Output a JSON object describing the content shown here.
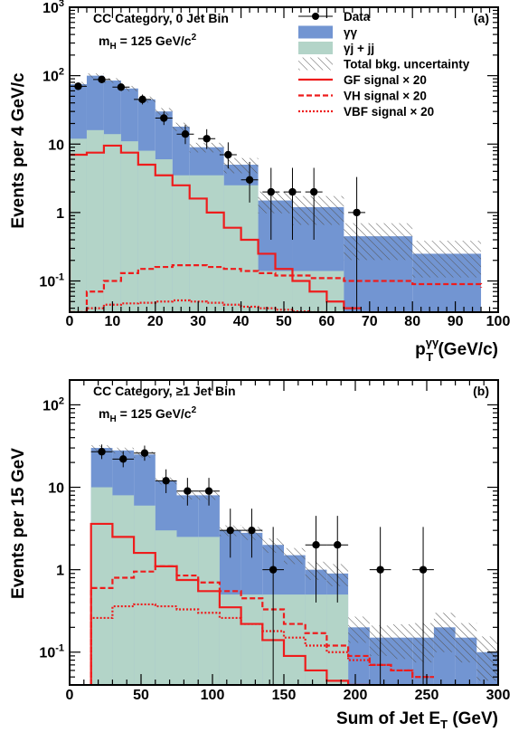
{
  "colors": {
    "gg": "#7295d2",
    "gj": "#b3d4c8",
    "signal": "#ee1c1c",
    "data": "#000000",
    "hatch": "#555555"
  },
  "legend": {
    "data": "Data",
    "gg": "γγ",
    "gj": "γj + jj",
    "unc": "Total bkg. uncertainty",
    "gf": "GF signal × 20",
    "vh": "VH signal × 20",
    "vbf": "VBF signal × 20"
  },
  "chart_data": [
    {
      "type": "histogram",
      "panel_label": "(a)",
      "category_text": "CC Category, 0 Jet Bin",
      "mass_text": "m",
      "mass_sub": "H",
      "mass_val": " = 125 GeV/c",
      "mass_sup": "2",
      "ylabel": "Events per 4 GeV/c",
      "xlabel": "p",
      "xlabel_sub": "T",
      "xlabel_sup": "γγ",
      "xlabel_unit": " (GeV/c)",
      "yscale": "log",
      "xlim": [
        0,
        100
      ],
      "ylim": [
        0.035,
        1000
      ],
      "xticks": [
        0,
        10,
        20,
        30,
        40,
        50,
        60,
        70,
        80,
        90,
        100
      ],
      "yticks": [
        {
          "v": 0.1,
          "m": "10",
          "e": "-1"
        },
        {
          "v": 1,
          "m": "1",
          "e": ""
        },
        {
          "v": 10,
          "m": "10",
          "e": ""
        },
        {
          "v": 100,
          "m": "10",
          "e": "2"
        },
        {
          "v": 1000,
          "m": "10",
          "e": "3"
        }
      ],
      "bins": [
        0,
        4,
        8,
        12,
        16,
        20,
        24,
        28,
        36,
        44,
        52,
        64,
        80,
        96
      ],
      "gj": [
        12,
        16,
        14,
        11,
        8,
        6,
        3.5,
        3.5,
        2.5,
        0.14,
        0.14,
        0.035,
        0.035
      ],
      "total": [
        75,
        100,
        85,
        65,
        45,
        30,
        18,
        9,
        5,
        1.5,
        1.2,
        0.45,
        0.25
      ],
      "unc": [
        0.08,
        0.08,
        0.08,
        0.09,
        0.1,
        0.12,
        0.14,
        0.16,
        0.25,
        0.35,
        0.45,
        0.55,
        0.55
      ],
      "gf_bins": [
        0,
        4,
        8,
        12,
        16,
        20,
        24,
        28,
        32,
        36,
        40,
        44,
        48,
        52,
        56,
        60,
        64,
        68
      ],
      "gf": [
        7,
        7.5,
        9.5,
        7.5,
        5,
        3.5,
        2.5,
        1.6,
        1,
        0.6,
        0.4,
        0.25,
        0.15,
        0.1,
        0.07,
        0.05,
        0.04
      ],
      "vh_bins": [
        0,
        4,
        8,
        12,
        16,
        20,
        24,
        28,
        32,
        36,
        40,
        44,
        48,
        52,
        56,
        64,
        80,
        96
      ],
      "vh": [
        0.035,
        0.07,
        0.1,
        0.13,
        0.15,
        0.16,
        0.17,
        0.17,
        0.16,
        0.15,
        0.14,
        0.13,
        0.12,
        0.12,
        0.11,
        0.1,
        0.09,
        0.08
      ],
      "vbf_bins": [
        0,
        4,
        8,
        12,
        16,
        20,
        24,
        28,
        32,
        36,
        40,
        44,
        48,
        52,
        56,
        60
      ],
      "vbf": [
        0.035,
        0.04,
        0.045,
        0.047,
        0.048,
        0.05,
        0.052,
        0.05,
        0.048,
        0.045,
        0.042,
        0.04,
        0.038,
        0.036,
        0.035
      ],
      "data": [
        {
          "x": 2,
          "y": 70,
          "lo": 8,
          "hi": 9,
          "xe": 2
        },
        {
          "x": 7.5,
          "y": 88,
          "lo": 9,
          "hi": 10,
          "xe": 2
        },
        {
          "x": 12,
          "y": 68,
          "lo": 8,
          "hi": 9,
          "xe": 2
        },
        {
          "x": 17,
          "y": 45,
          "lo": 7,
          "hi": 8,
          "xe": 2
        },
        {
          "x": 22,
          "y": 24,
          "lo": 5,
          "hi": 6,
          "xe": 2
        },
        {
          "x": 27,
          "y": 14,
          "lo": 4,
          "hi": 5,
          "xe": 2
        },
        {
          "x": 32,
          "y": 12,
          "lo": 3.5,
          "hi": 4.5,
          "xe": 2
        },
        {
          "x": 37,
          "y": 7,
          "lo": 2.6,
          "hi": 3.6,
          "xe": 2
        },
        {
          "x": 42,
          "y": 3,
          "lo": 1.6,
          "hi": 2.5,
          "xe": 2
        },
        {
          "x": 47,
          "y": 2,
          "lo": 1.6,
          "hi": 2.5,
          "xe": 2
        },
        {
          "x": 52,
          "y": 2,
          "lo": 1.6,
          "hi": 2.5,
          "xe": 2
        },
        {
          "x": 57,
          "y": 2,
          "lo": 1.6,
          "hi": 2.5,
          "xe": 2
        },
        {
          "x": 67,
          "y": 1,
          "lo": 0.965,
          "hi": 2.3,
          "xe": 2
        }
      ]
    },
    {
      "type": "histogram",
      "panel_label": "(b)",
      "category_text": "CC Category, ≥1 Jet Bin",
      "mass_text": "m",
      "mass_sub": "H",
      "mass_val": " = 125 GeV/c",
      "mass_sup": "2",
      "ylabel": "Events per 15 GeV",
      "xlabel": "Sum of Jet E",
      "xlabel_sub": "T",
      "xlabel_sup": "",
      "xlabel_unit": " (GeV)",
      "yscale": "log",
      "xlim": [
        0,
        300
      ],
      "ylim": [
        0.04,
        200
      ],
      "xticks": [
        0,
        50,
        100,
        150,
        200,
        250,
        300
      ],
      "yticks": [
        {
          "v": 0.1,
          "m": "10",
          "e": "-1"
        },
        {
          "v": 1,
          "m": "1",
          "e": ""
        },
        {
          "v": 10,
          "m": "10",
          "e": ""
        },
        {
          "v": 100,
          "m": "10",
          "e": "2"
        }
      ],
      "bins": [
        15,
        30,
        45,
        60,
        75,
        90,
        105,
        120,
        135,
        150,
        165,
        180,
        195,
        210,
        225,
        240,
        255,
        270,
        285,
        300
      ],
      "gj": [
        10,
        8,
        6,
        3,
        2.5,
        2.5,
        0.5,
        0.5,
        0.5,
        0.5,
        0.5,
        0.5,
        0.04,
        0.04,
        0.04,
        0.04,
        0.04,
        0.04,
        0.04
      ],
      "total": [
        30,
        28,
        25,
        12,
        8,
        8,
        3,
        2.8,
        2,
        1.5,
        1,
        0.9,
        0.2,
        0.15,
        0.15,
        0.15,
        0.2,
        0.15,
        0.1
      ],
      "unc": [
        0.08,
        0.08,
        0.09,
        0.1,
        0.11,
        0.12,
        0.15,
        0.18,
        0.2,
        0.22,
        0.25,
        0.3,
        0.35,
        0.4,
        0.45,
        0.5,
        0.5,
        0.5,
        0.55
      ],
      "gf_bins": [
        15,
        30,
        45,
        60,
        75,
        90,
        105,
        120,
        135,
        150,
        165,
        180,
        195,
        210
      ],
      "gf": [
        3.6,
        2.5,
        1.6,
        1.1,
        0.75,
        0.55,
        0.35,
        0.22,
        0.14,
        0.09,
        0.06,
        0.045,
        0.04
      ],
      "vh_bins": [
        15,
        30,
        45,
        60,
        75,
        90,
        105,
        120,
        135,
        150,
        165,
        180,
        195,
        210,
        225,
        240,
        255
      ],
      "vh": [
        0.6,
        0.8,
        0.95,
        1.1,
        0.85,
        0.7,
        0.55,
        0.45,
        0.33,
        0.22,
        0.17,
        0.12,
        0.09,
        0.07,
        0.06,
        0.05
      ],
      "vbf_bins": [
        15,
        30,
        45,
        60,
        75,
        90,
        105,
        120,
        135,
        150,
        165,
        180,
        195,
        210,
        225,
        240,
        255
      ],
      "vbf": [
        0.26,
        0.36,
        0.38,
        0.36,
        0.33,
        0.3,
        0.26,
        0.22,
        0.18,
        0.15,
        0.12,
        0.1,
        0.08,
        0.07,
        0.06,
        0.05
      ],
      "data": [
        {
          "x": 22.5,
          "y": 27,
          "lo": 5,
          "hi": 6,
          "xe": 7.5
        },
        {
          "x": 37.5,
          "y": 22,
          "lo": 4.5,
          "hi": 5.5,
          "xe": 7.5
        },
        {
          "x": 52.5,
          "y": 26,
          "lo": 5,
          "hi": 6,
          "xe": 7.5
        },
        {
          "x": 67.5,
          "y": 12,
          "lo": 3.5,
          "hi": 4.5,
          "xe": 7.5
        },
        {
          "x": 82.5,
          "y": 9,
          "lo": 3,
          "hi": 4,
          "xe": 7.5
        },
        {
          "x": 97.5,
          "y": 9,
          "lo": 3,
          "hi": 4,
          "xe": 7.5
        },
        {
          "x": 112.5,
          "y": 3,
          "lo": 1.6,
          "hi": 2.5,
          "xe": 7.5
        },
        {
          "x": 127.5,
          "y": 3,
          "lo": 1.6,
          "hi": 2.5,
          "xe": 7.5
        },
        {
          "x": 142.5,
          "y": 1,
          "lo": 0.96,
          "hi": 2.3,
          "xe": 7.5
        },
        {
          "x": 172.5,
          "y": 2,
          "lo": 1.6,
          "hi": 2.5,
          "xe": 7.5
        },
        {
          "x": 187.5,
          "y": 2,
          "lo": 1.6,
          "hi": 2.5,
          "xe": 7.5
        },
        {
          "x": 217.5,
          "y": 1,
          "lo": 0.96,
          "hi": 2.3,
          "xe": 7.5
        },
        {
          "x": 247.5,
          "y": 1,
          "lo": 0.96,
          "hi": 2.3,
          "xe": 7.5
        }
      ]
    }
  ]
}
